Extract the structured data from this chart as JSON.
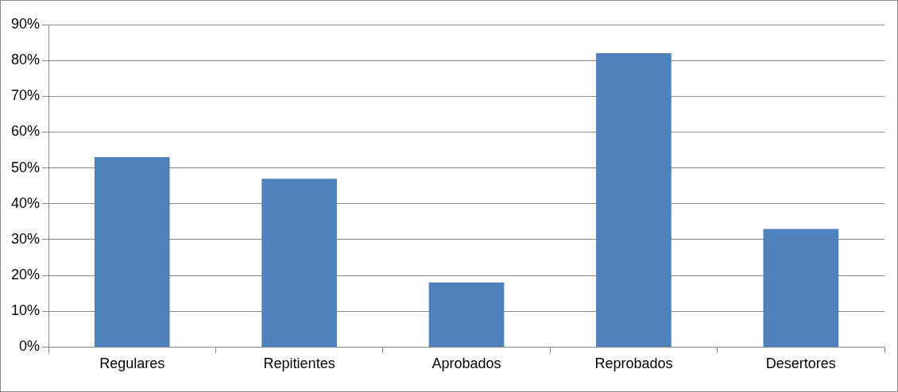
{
  "chart_data": {
    "type": "bar",
    "categories": [
      "Regulares",
      "Repitientes",
      "Aprobados",
      "Reprobados",
      "Desertores"
    ],
    "values": [
      53,
      47,
      18,
      82,
      33
    ],
    "color": "#4f81bd",
    "ylim": [
      0,
      90
    ],
    "yticks": [
      {
        "value": 0,
        "label": "0%"
      },
      {
        "value": 10,
        "label": "10%"
      },
      {
        "value": 20,
        "label": "20%"
      },
      {
        "value": 30,
        "label": "30%"
      },
      {
        "value": 40,
        "label": "40%"
      },
      {
        "value": 50,
        "label": "50%"
      },
      {
        "value": 60,
        "label": "60%"
      },
      {
        "value": 70,
        "label": "70%"
      },
      {
        "value": 80,
        "label": "80%"
      },
      {
        "value": 90,
        "label": "90%"
      }
    ],
    "grid": "y",
    "legend": false
  }
}
